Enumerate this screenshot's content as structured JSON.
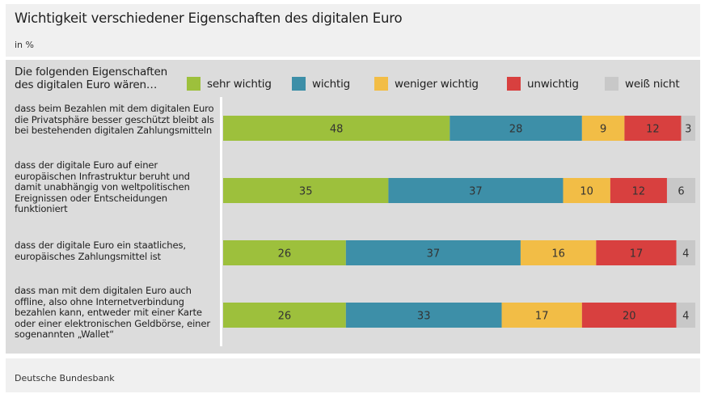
{
  "header": {
    "title": "Wichtigkeit verschiedener Eigenschaften des digitalen Euro",
    "unit": "in %"
  },
  "footer": {
    "source": "Deutsche Bundesbank"
  },
  "chart_data": {
    "type": "bar",
    "orientation": "horizontal",
    "stacked": true,
    "title": "Wichtigkeit verschiedener Eigenschaften des digitalen Euro",
    "subtitle": "in %",
    "legend_intro": "Die folgenden Eigenschaften des digitalen Euro wären…",
    "legend_position": "top",
    "xlim": [
      0,
      100
    ],
    "grid": false,
    "categories": [
      "dass beim Bezahlen mit dem digitalen Euro die Privatsphäre besser geschützt bleibt als bei bestehenden digitalen Zahlungsmitteln",
      "dass der digitale Euro auf einer europäischen Infrastruktur beruht und damit unabhängig von weltpolitischen Ereignissen oder Entscheidungen funktioniert",
      "dass der digitale Euro ein staatliches, europäisches Zahlungsmittel ist",
      "dass man mit dem digitalen Euro auch offline, also ohne Internetverbindung bezahlen kann, entweder mit einer Karte oder einer elektronischen Geldbörse, einer sogenannten „Wallet“"
    ],
    "series": [
      {
        "name": "sehr wichtig",
        "color": "#9dc03c",
        "values": [
          48,
          35,
          26,
          26
        ]
      },
      {
        "name": "wichtig",
        "color": "#3d8fa8",
        "values": [
          28,
          37,
          37,
          33
        ]
      },
      {
        "name": "weniger wichtig",
        "color": "#f2bd46",
        "values": [
          9,
          10,
          16,
          17
        ]
      },
      {
        "name": "unwichtig",
        "color": "#d8403f",
        "values": [
          12,
          12,
          17,
          20
        ]
      },
      {
        "name": "weiß nicht",
        "color": "#c8c8c8",
        "values": [
          3,
          6,
          4,
          4
        ]
      }
    ],
    "data_label_color": "#333333"
  }
}
